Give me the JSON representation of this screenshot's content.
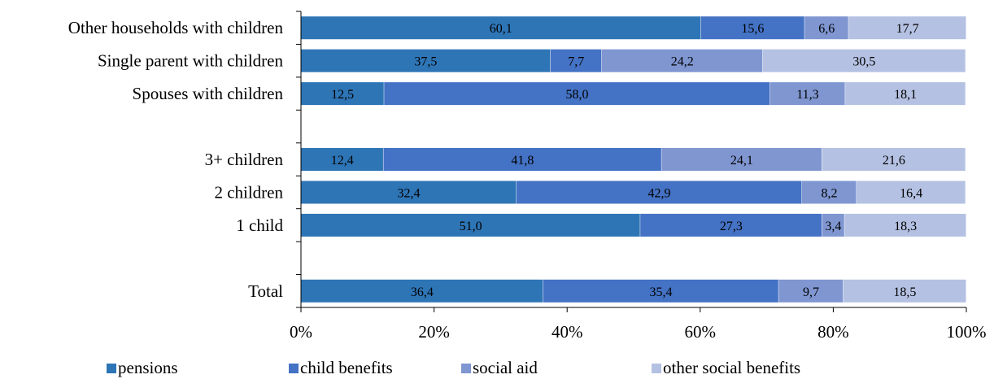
{
  "chart_data": {
    "type": "bar",
    "orientation": "horizontal",
    "stacked": true,
    "percent_stacked": true,
    "categories": [
      "Other households with children",
      "Single parent with children",
      "Spouses with children",
      "",
      "3+ children",
      "2 children",
      "1 child",
      "",
      "Total"
    ],
    "series": [
      {
        "name": "pensions",
        "color": "#2e75b6",
        "values": [
          60.1,
          37.5,
          12.5,
          null,
          12.4,
          32.4,
          51.0,
          null,
          36.4
        ],
        "labels": [
          "60,1",
          "37,5",
          "12,5",
          "",
          "12,4",
          "32,4",
          "51,0",
          "",
          "36,4"
        ]
      },
      {
        "name": "child benefits",
        "color": "#4472c4",
        "values": [
          15.6,
          7.7,
          58.0,
          null,
          41.8,
          42.9,
          27.3,
          null,
          35.4
        ],
        "labels": [
          "15,6",
          "7,7",
          "58,0",
          "",
          "41,8",
          "42,9",
          "27,3",
          "",
          "35,4"
        ]
      },
      {
        "name": "social aid",
        "color": "#7f96d1",
        "values": [
          6.6,
          24.2,
          11.3,
          null,
          24.1,
          8.2,
          3.4,
          null,
          9.7
        ],
        "labels": [
          "6,6",
          "24,2",
          "11,3",
          "",
          "24,1",
          "8,2",
          "3,4",
          "",
          "9,7"
        ]
      },
      {
        "name": "other social benefits",
        "color": "#b4c1e2",
        "values": [
          17.7,
          30.5,
          18.1,
          null,
          21.6,
          16.4,
          18.3,
          null,
          18.5
        ],
        "labels": [
          "17,7",
          "30,5",
          "18,1",
          "",
          "21,6",
          "16,4",
          "18,3",
          "",
          "18,5"
        ]
      }
    ],
    "xlim": [
      0,
      100
    ],
    "x_ticks": [
      "0%",
      "20%",
      "40%",
      "60%",
      "80%",
      "100%"
    ],
    "grid": false,
    "legend_position": "bottom"
  }
}
